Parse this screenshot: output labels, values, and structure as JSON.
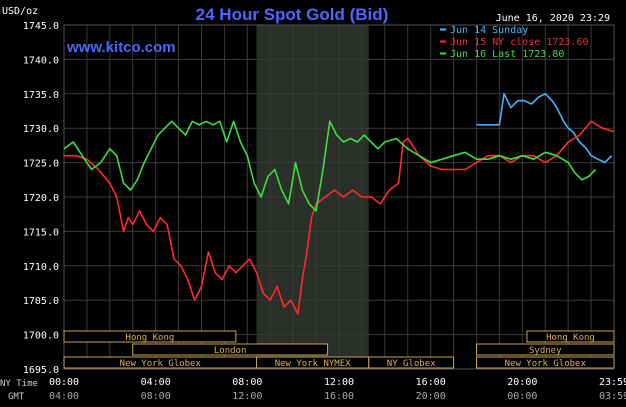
{
  "chart_data": {
    "type": "line",
    "title": "24 Hour Spot Gold (Bid)",
    "watermark": "www.kitco.com",
    "timestamp": "June 16, 2020 23:29",
    "ylabel": "USD/oz",
    "ylim": [
      1695,
      1745
    ],
    "xlim_hours": [
      0,
      24
    ],
    "y_ticks": [
      "1695.0",
      "1700.0",
      "1705.0",
      "1710.0",
      "1715.0",
      "1720.0",
      "1725.0",
      "1730.0",
      "1735.0",
      "1740.0",
      "1745.0"
    ],
    "x_ticks_ny": [
      "00:00",
      "04:00",
      "08:00",
      "12:00",
      "16:00",
      "20:00",
      "23:59"
    ],
    "x_ticks_gmt": [
      "04:00",
      "08:00",
      "12:00",
      "16:00",
      "20:00",
      "00:00",
      "03:59"
    ],
    "x_axis_label_ny": "NY Time",
    "x_axis_label_gmt": "GMT",
    "grid": true,
    "highlight_hours": [
      8.4,
      13.3
    ],
    "colors": {
      "background": "#000000",
      "grid": "#3a3a3a",
      "axis_text": "#ffffff",
      "title": "#4f66ff",
      "watermark": "#4f66ff",
      "highlight": "#2a2f2a",
      "session_text": "#d9b25a",
      "session_box": "#c9a54c"
    },
    "series": [
      {
        "name": "Jun 14 Sunday",
        "color": "#3fb6ff",
        "x": [
          18.0,
          18.5,
          19.0,
          19.2,
          19.5,
          19.8,
          20.1,
          20.4,
          20.7,
          21.0,
          21.3,
          21.5,
          21.8,
          22.0,
          22.2,
          22.5,
          22.8,
          23.0,
          23.3,
          23.6,
          23.9
        ],
        "y": [
          1730.5,
          1730.5,
          1730.5,
          1735.0,
          1733.0,
          1734.0,
          1734.0,
          1733.5,
          1734.5,
          1735.0,
          1734.0,
          1733.0,
          1731.0,
          1730.0,
          1729.5,
          1728.0,
          1727.0,
          1726.0,
          1725.5,
          1725.0,
          1726.0
        ]
      },
      {
        "name": "Jun 15 NY close 1723.60",
        "color": "#ff2a2a",
        "x": [
          0.0,
          0.5,
          1.0,
          1.5,
          2.0,
          2.3,
          2.6,
          2.8,
          3.0,
          3.3,
          3.6,
          3.9,
          4.2,
          4.5,
          4.8,
          5.1,
          5.4,
          5.7,
          6.0,
          6.3,
          6.6,
          6.9,
          7.2,
          7.5,
          7.8,
          8.1,
          8.4,
          8.7,
          9.0,
          9.3,
          9.6,
          9.9,
          10.2,
          10.4,
          10.6,
          10.8,
          11.0,
          11.4,
          11.8,
          12.2,
          12.6,
          13.0,
          13.4,
          13.8,
          14.2,
          14.6,
          14.8,
          15.0,
          15.5,
          16.0,
          16.5,
          17.0,
          17.5,
          18.0,
          18.5,
          19.0,
          19.5,
          20.0,
          20.5,
          21.0,
          21.5,
          22.0,
          22.5,
          23.0,
          23.5,
          23.99
        ],
        "y": [
          1726.0,
          1726.0,
          1725.5,
          1724.0,
          1722.0,
          1720.0,
          1715.0,
          1717.0,
          1716.0,
          1718.0,
          1716.0,
          1715.0,
          1717.0,
          1716.0,
          1711.0,
          1710.0,
          1708.0,
          1705.0,
          1707.0,
          1712.0,
          1709.0,
          1708.0,
          1710.0,
          1709.0,
          1710.0,
          1711.0,
          1709.0,
          1706.0,
          1705.0,
          1707.0,
          1704.0,
          1705.0,
          1703.0,
          1708.0,
          1712.0,
          1717.0,
          1719.0,
          1720.0,
          1721.0,
          1720.0,
          1721.0,
          1720.0,
          1720.0,
          1719.0,
          1721.0,
          1722.0,
          1728.0,
          1728.5,
          1726.0,
          1724.5,
          1724.0,
          1724.0,
          1724.0,
          1725.0,
          1726.0,
          1726.0,
          1725.0,
          1726.0,
          1726.0,
          1725.0,
          1726.0,
          1728.0,
          1729.0,
          1731.0,
          1730.0,
          1729.5
        ]
      },
      {
        "name": "Jun 16 Last 1723.80",
        "color": "#3ce03c",
        "x": [
          0.0,
          0.4,
          0.8,
          1.2,
          1.6,
          2.0,
          2.3,
          2.6,
          2.9,
          3.2,
          3.5,
          3.8,
          4.1,
          4.4,
          4.7,
          5.0,
          5.3,
          5.6,
          5.9,
          6.2,
          6.5,
          6.8,
          7.1,
          7.4,
          7.7,
          8.0,
          8.3,
          8.6,
          8.9,
          9.2,
          9.5,
          9.8,
          10.1,
          10.4,
          10.7,
          11.0,
          11.3,
          11.6,
          11.9,
          12.2,
          12.5,
          12.8,
          13.1,
          13.4,
          13.7,
          14.0,
          14.5,
          15.0,
          15.5,
          16.0,
          16.5,
          17.0,
          17.5,
          18.0,
          18.5,
          19.0,
          19.5,
          20.0,
          20.5,
          21.0,
          21.5,
          22.0,
          22.3,
          22.6,
          22.9,
          23.2
        ],
        "y": [
          1727.0,
          1728.0,
          1726.0,
          1724.0,
          1725.0,
          1727.0,
          1726.0,
          1722.0,
          1721.0,
          1722.5,
          1725.0,
          1727.0,
          1729.0,
          1730.0,
          1731.0,
          1730.0,
          1729.0,
          1731.0,
          1730.5,
          1731.0,
          1730.5,
          1731.0,
          1728.0,
          1731.0,
          1728.0,
          1726.0,
          1722.0,
          1720.0,
          1723.0,
          1724.0,
          1721.0,
          1719.0,
          1725.0,
          1721.0,
          1719.0,
          1718.0,
          1724.0,
          1731.0,
          1729.0,
          1728.0,
          1728.5,
          1728.0,
          1729.0,
          1728.0,
          1727.0,
          1728.0,
          1728.5,
          1727.0,
          1726.0,
          1725.0,
          1725.5,
          1726.0,
          1726.5,
          1725.5,
          1725.5,
          1726.0,
          1725.5,
          1726.0,
          1725.5,
          1726.5,
          1726.0,
          1725.0,
          1723.5,
          1722.5,
          1723.0,
          1724.0
        ]
      }
    ],
    "sessions": [
      {
        "label": "Hong Kong",
        "row": 0,
        "x0": 0.0,
        "x1": 7.5
      },
      {
        "label": "London",
        "row": 1,
        "x0": 3.0,
        "x1": 11.5
      },
      {
        "label": "New York Globex",
        "row": 2,
        "x0": 0.0,
        "x1": 8.4
      },
      {
        "label": "New York NYMEX",
        "row": 2,
        "x0": 8.4,
        "x1": 13.3
      },
      {
        "label": "NY Globex",
        "row": 2,
        "x0": 13.3,
        "x1": 17.0
      },
      {
        "label": "Hong Kong",
        "row": 0,
        "x0": 20.2,
        "x1": 24.0
      },
      {
        "label": "Sydney",
        "row": 1,
        "x0": 18.0,
        "x1": 24.0
      },
      {
        "label": "New York Globex",
        "row": 2,
        "x0": 18.0,
        "x1": 24.0
      }
    ]
  }
}
